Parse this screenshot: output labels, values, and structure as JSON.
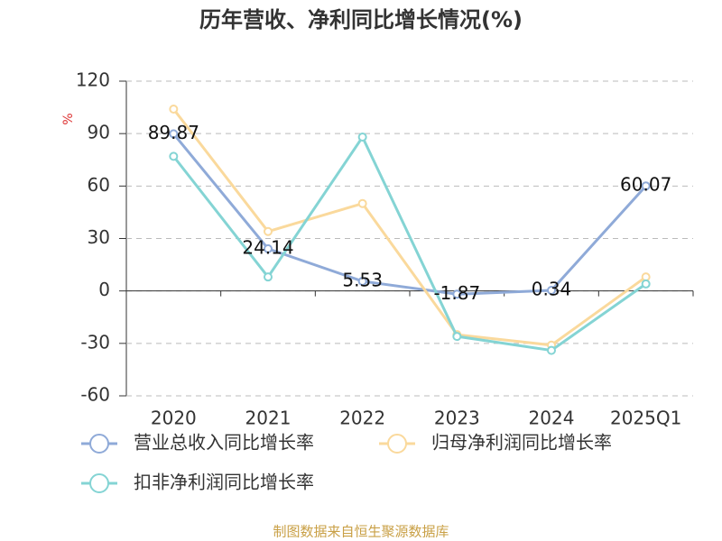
{
  "chart_data": {
    "type": "line",
    "title": "历年营收、净利同比增长情况(%)",
    "y_label": "%",
    "source": "制图数据来自恒生聚源数据库",
    "categories": [
      "2020",
      "2021",
      "2022",
      "2023",
      "2024",
      "2025Q1"
    ],
    "series": [
      {
        "name": "营业总收入同比增长率",
        "color": "#8faad8",
        "values": [
          89.87,
          24.14,
          5.53,
          -1.87,
          0.34,
          60.07
        ],
        "show_labels": true
      },
      {
        "name": "归母净利润同比增长率",
        "color": "#fad99c",
        "values": [
          104,
          34,
          50,
          -25,
          -31,
          8
        ],
        "show_labels": false
      },
      {
        "name": "扣非净利润同比增长率",
        "color": "#84d4d4",
        "values": [
          77,
          8,
          88,
          -26,
          -34,
          4
        ],
        "show_labels": false
      }
    ],
    "ylim": [
      -60,
      120
    ],
    "yticks": [
      -60,
      -30,
      0,
      30,
      60,
      90,
      120
    ],
    "grid": true
  }
}
